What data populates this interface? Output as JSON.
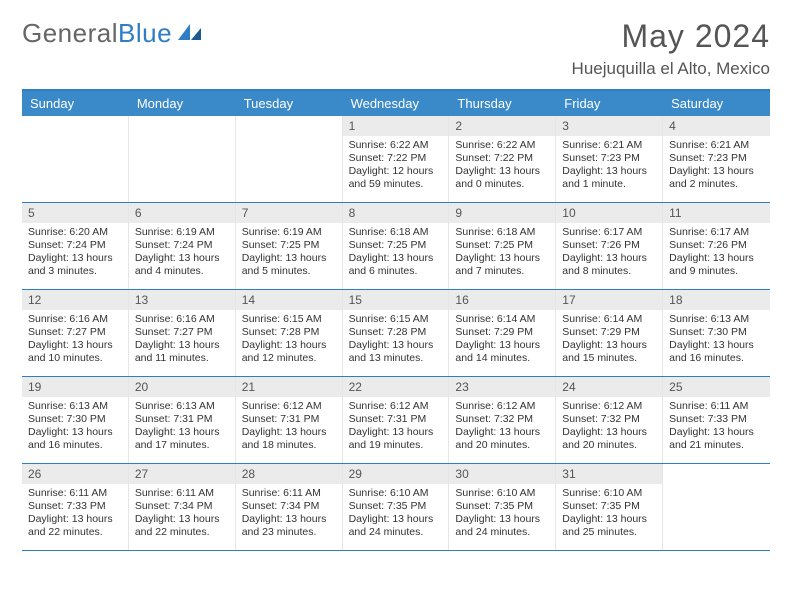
{
  "logo": {
    "text1": "General",
    "text2": "Blue"
  },
  "title": "May 2024",
  "location": "Huejuquilla el Alto, Mexico",
  "colors": {
    "header_bg": "#3a8ac9",
    "header_border": "#2f7dc4",
    "daynum_bg": "#ebebeb",
    "text": "#333333",
    "title_text": "#555555"
  },
  "dayNames": [
    "Sunday",
    "Monday",
    "Tuesday",
    "Wednesday",
    "Thursday",
    "Friday",
    "Saturday"
  ],
  "weeks": [
    [
      {
        "n": "",
        "sr": "",
        "ss": "",
        "dl": ""
      },
      {
        "n": "",
        "sr": "",
        "ss": "",
        "dl": ""
      },
      {
        "n": "",
        "sr": "",
        "ss": "",
        "dl": ""
      },
      {
        "n": "1",
        "sr": "Sunrise: 6:22 AM",
        "ss": "Sunset: 7:22 PM",
        "dl": "Daylight: 12 hours and 59 minutes."
      },
      {
        "n": "2",
        "sr": "Sunrise: 6:22 AM",
        "ss": "Sunset: 7:22 PM",
        "dl": "Daylight: 13 hours and 0 minutes."
      },
      {
        "n": "3",
        "sr": "Sunrise: 6:21 AM",
        "ss": "Sunset: 7:23 PM",
        "dl": "Daylight: 13 hours and 1 minute."
      },
      {
        "n": "4",
        "sr": "Sunrise: 6:21 AM",
        "ss": "Sunset: 7:23 PM",
        "dl": "Daylight: 13 hours and 2 minutes."
      }
    ],
    [
      {
        "n": "5",
        "sr": "Sunrise: 6:20 AM",
        "ss": "Sunset: 7:24 PM",
        "dl": "Daylight: 13 hours and 3 minutes."
      },
      {
        "n": "6",
        "sr": "Sunrise: 6:19 AM",
        "ss": "Sunset: 7:24 PM",
        "dl": "Daylight: 13 hours and 4 minutes."
      },
      {
        "n": "7",
        "sr": "Sunrise: 6:19 AM",
        "ss": "Sunset: 7:25 PM",
        "dl": "Daylight: 13 hours and 5 minutes."
      },
      {
        "n": "8",
        "sr": "Sunrise: 6:18 AM",
        "ss": "Sunset: 7:25 PM",
        "dl": "Daylight: 13 hours and 6 minutes."
      },
      {
        "n": "9",
        "sr": "Sunrise: 6:18 AM",
        "ss": "Sunset: 7:25 PM",
        "dl": "Daylight: 13 hours and 7 minutes."
      },
      {
        "n": "10",
        "sr": "Sunrise: 6:17 AM",
        "ss": "Sunset: 7:26 PM",
        "dl": "Daylight: 13 hours and 8 minutes."
      },
      {
        "n": "11",
        "sr": "Sunrise: 6:17 AM",
        "ss": "Sunset: 7:26 PM",
        "dl": "Daylight: 13 hours and 9 minutes."
      }
    ],
    [
      {
        "n": "12",
        "sr": "Sunrise: 6:16 AM",
        "ss": "Sunset: 7:27 PM",
        "dl": "Daylight: 13 hours and 10 minutes."
      },
      {
        "n": "13",
        "sr": "Sunrise: 6:16 AM",
        "ss": "Sunset: 7:27 PM",
        "dl": "Daylight: 13 hours and 11 minutes."
      },
      {
        "n": "14",
        "sr": "Sunrise: 6:15 AM",
        "ss": "Sunset: 7:28 PM",
        "dl": "Daylight: 13 hours and 12 minutes."
      },
      {
        "n": "15",
        "sr": "Sunrise: 6:15 AM",
        "ss": "Sunset: 7:28 PM",
        "dl": "Daylight: 13 hours and 13 minutes."
      },
      {
        "n": "16",
        "sr": "Sunrise: 6:14 AM",
        "ss": "Sunset: 7:29 PM",
        "dl": "Daylight: 13 hours and 14 minutes."
      },
      {
        "n": "17",
        "sr": "Sunrise: 6:14 AM",
        "ss": "Sunset: 7:29 PM",
        "dl": "Daylight: 13 hours and 15 minutes."
      },
      {
        "n": "18",
        "sr": "Sunrise: 6:13 AM",
        "ss": "Sunset: 7:30 PM",
        "dl": "Daylight: 13 hours and 16 minutes."
      }
    ],
    [
      {
        "n": "19",
        "sr": "Sunrise: 6:13 AM",
        "ss": "Sunset: 7:30 PM",
        "dl": "Daylight: 13 hours and 16 minutes."
      },
      {
        "n": "20",
        "sr": "Sunrise: 6:13 AM",
        "ss": "Sunset: 7:31 PM",
        "dl": "Daylight: 13 hours and 17 minutes."
      },
      {
        "n": "21",
        "sr": "Sunrise: 6:12 AM",
        "ss": "Sunset: 7:31 PM",
        "dl": "Daylight: 13 hours and 18 minutes."
      },
      {
        "n": "22",
        "sr": "Sunrise: 6:12 AM",
        "ss": "Sunset: 7:31 PM",
        "dl": "Daylight: 13 hours and 19 minutes."
      },
      {
        "n": "23",
        "sr": "Sunrise: 6:12 AM",
        "ss": "Sunset: 7:32 PM",
        "dl": "Daylight: 13 hours and 20 minutes."
      },
      {
        "n": "24",
        "sr": "Sunrise: 6:12 AM",
        "ss": "Sunset: 7:32 PM",
        "dl": "Daylight: 13 hours and 20 minutes."
      },
      {
        "n": "25",
        "sr": "Sunrise: 6:11 AM",
        "ss": "Sunset: 7:33 PM",
        "dl": "Daylight: 13 hours and 21 minutes."
      }
    ],
    [
      {
        "n": "26",
        "sr": "Sunrise: 6:11 AM",
        "ss": "Sunset: 7:33 PM",
        "dl": "Daylight: 13 hours and 22 minutes."
      },
      {
        "n": "27",
        "sr": "Sunrise: 6:11 AM",
        "ss": "Sunset: 7:34 PM",
        "dl": "Daylight: 13 hours and 22 minutes."
      },
      {
        "n": "28",
        "sr": "Sunrise: 6:11 AM",
        "ss": "Sunset: 7:34 PM",
        "dl": "Daylight: 13 hours and 23 minutes."
      },
      {
        "n": "29",
        "sr": "Sunrise: 6:10 AM",
        "ss": "Sunset: 7:35 PM",
        "dl": "Daylight: 13 hours and 24 minutes."
      },
      {
        "n": "30",
        "sr": "Sunrise: 6:10 AM",
        "ss": "Sunset: 7:35 PM",
        "dl": "Daylight: 13 hours and 24 minutes."
      },
      {
        "n": "31",
        "sr": "Sunrise: 6:10 AM",
        "ss": "Sunset: 7:35 PM",
        "dl": "Daylight: 13 hours and 25 minutes."
      },
      {
        "n": "",
        "sr": "",
        "ss": "",
        "dl": ""
      }
    ]
  ]
}
